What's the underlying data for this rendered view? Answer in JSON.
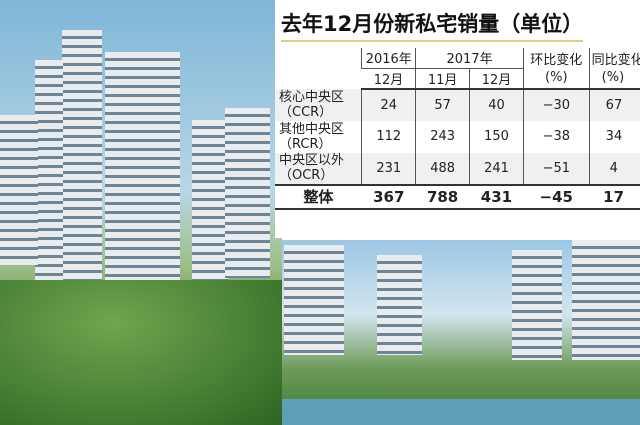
{
  "title": "去年12月份新私宅销量（单位）",
  "table": {
    "header_years": [
      "2016年",
      "2017年"
    ],
    "header_change_mom": "环比变化",
    "header_change_yoy": "同比变化",
    "header_pct": "(%)",
    "header_months": [
      "12月",
      "11月",
      "12月"
    ],
    "rows": [
      {
        "name": "核心中央区",
        "code": "（CCR）",
        "values": [
          "24",
          "57",
          "40",
          "−30",
          "67"
        ]
      },
      {
        "name": "其他中央区",
        "code": "（RCR）",
        "values": [
          "112",
          "243",
          "150",
          "−38",
          "34"
        ]
      },
      {
        "name": "中央区以外",
        "code": "（OCR）",
        "values": [
          "231",
          "488",
          "241",
          "−51",
          "4"
        ]
      }
    ],
    "total": {
      "name": "整体",
      "values": [
        "367",
        "788",
        "431",
        "−45",
        "17"
      ]
    }
  }
}
